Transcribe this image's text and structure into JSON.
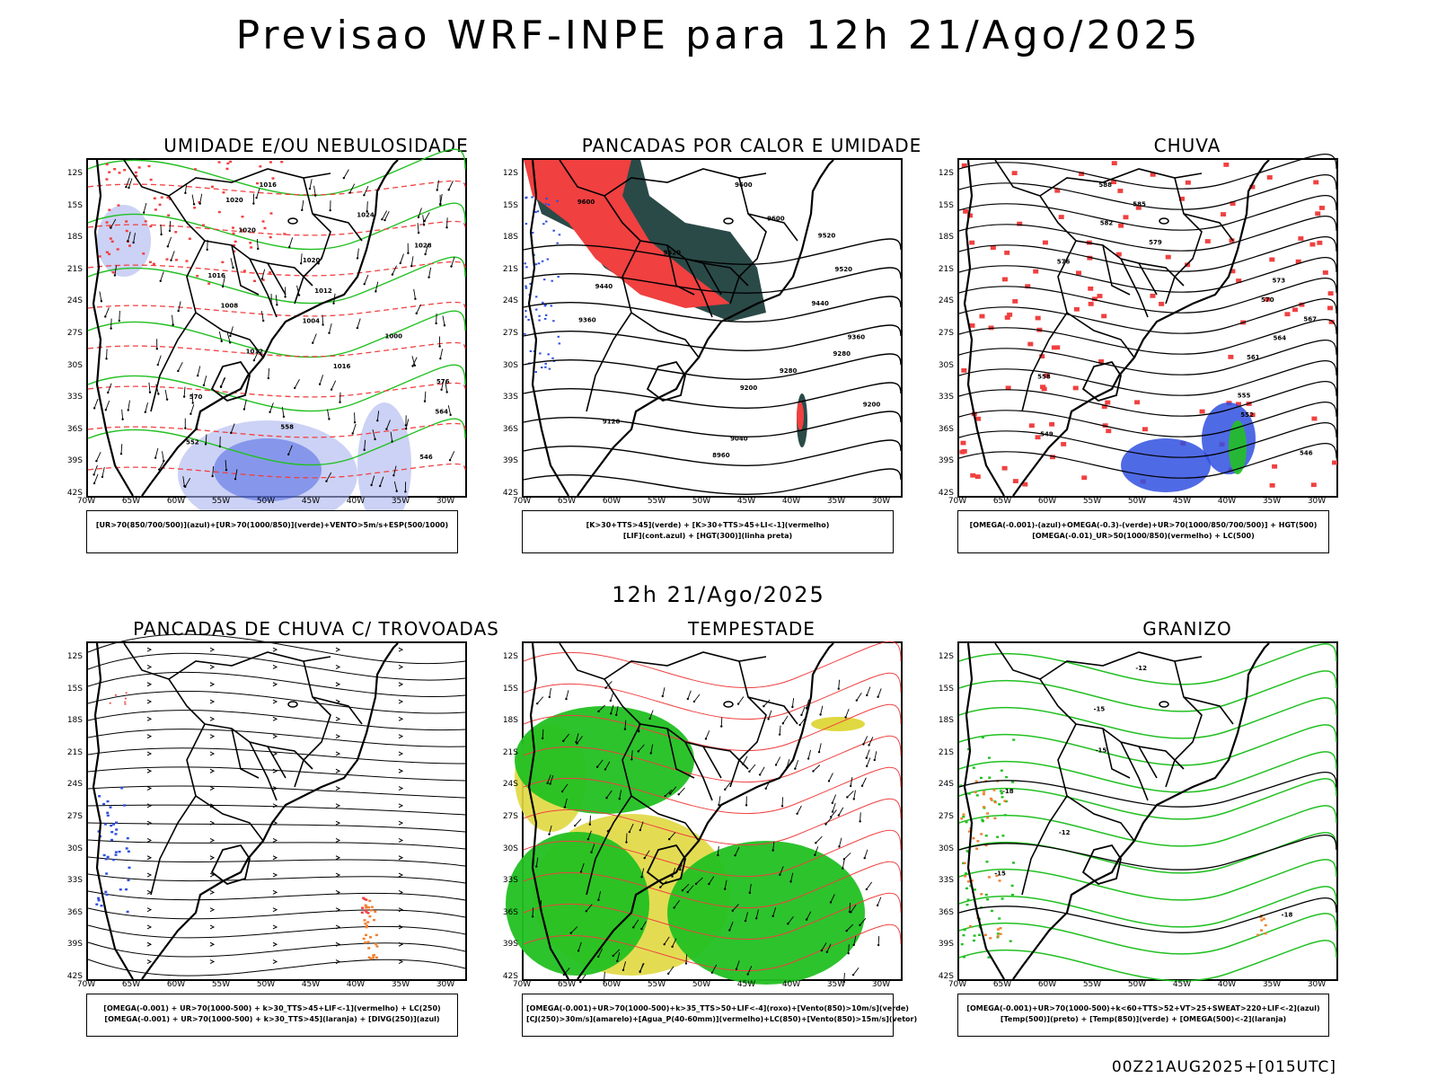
{
  "page": {
    "title": "Previsao WRF-INPE  para 12h 21/Ago/2025",
    "mid_title": "12h 21/Ago/2025",
    "footer": "00Z21AUG2025+[015UTC]"
  },
  "axes": {
    "lat_labels": [
      "12S",
      "15S",
      "18S",
      "21S",
      "24S",
      "27S",
      "30S",
      "33S",
      "36S",
      "39S",
      "42S"
    ],
    "lon_labels": [
      "70W",
      "65W",
      "60W",
      "55W",
      "50W",
      "45W",
      "40W",
      "35W",
      "30W"
    ]
  },
  "panels": [
    {
      "id": "umidade",
      "title": "UMIDADE E/OU NEBULOSIDADE",
      "caption_lines": [
        "[UR>70(850/700/500)](azul)+[UR>70(1000/850)](verde)+VENTO>5m/s+ESP(500/1000)"
      ],
      "contour_labels": [
        "1016",
        "1020",
        "1024",
        "1020",
        "1028",
        "1020",
        "1016",
        "1012",
        "1008",
        "1004",
        "1000",
        "1012",
        "1016",
        "576",
        "570",
        "564",
        "558",
        "552",
        "546"
      ]
    },
    {
      "id": "pancadas-calor",
      "title": "PANCADAS POR CALOR E UMIDADE",
      "caption_lines": [
        "[K>30+TTS>45](verde)  +  [K>30+TTS>45+LI<-1](vermelho)",
        "[LIF](cont.azul)  +  [HGT(300)](linha preta)"
      ],
      "contour_labels": [
        "9600",
        "9600",
        "9600",
        "9520",
        "9520",
        "9520",
        "9440",
        "9440",
        "9360",
        "9360",
        "9280",
        "9280",
        "9200",
        "9200",
        "9120",
        "9040",
        "8960"
      ]
    },
    {
      "id": "chuva",
      "title": "CHUVA",
      "caption_lines": [
        "[OMEGA(-0.001)-(azul)+OMEGA(-0.3)-(verde)+UR>70(1000/850/700/500)]  +  HGT(500)",
        "[OMEGA(-0.01)_UR>50(1000/850)(vermelho)  +  LC(500)"
      ],
      "contour_labels": [
        "588",
        "585",
        "582",
        "579",
        "576",
        "573",
        "570",
        "567",
        "564",
        "561",
        "558",
        "555",
        "552",
        "549",
        "546"
      ]
    },
    {
      "id": "trovoadas",
      "title": "PANCADAS DE CHUVA C/ TROVOADAS",
      "caption_lines": [
        "[OMEGA(-0.001)  +  UR>70(1000-500)  +  k>30_TTS>45+LIF<-1](vermelho)  +  LC(250)",
        "[OMEGA(-0.001)  +  UR>70(1000-500)  +  k>30_TTS>45](laranja)  +  [DIVG(250)](azul)"
      ],
      "contour_labels": []
    },
    {
      "id": "tempestade",
      "title": "TEMPESTADE",
      "caption_lines": [
        "[OMEGA(-0.001)+UR>70(1000-500)+k>35_TTS>50+LIF<-4](roxo)+[Vento(850)>10m/s](verde)",
        "[CJ(250)>30m/s](amarelo)+[Agua_P(40-60mm)](vermelho)+LC(850)+[Vento(850)>15m/s](vetor)"
      ],
      "contour_labels": []
    },
    {
      "id": "granizo",
      "title": "GRANIZO",
      "caption_lines": [
        "[OMEGA(-0.001)+UR>70(1000-500)+k<60+TTS>52+VT>25+SWEAT>220+LIF<-2](azul)",
        "[Temp(500)](preto)  +  [Temp(850)](verde)  +  [OMEGA(500)<-2](laranja)"
      ],
      "contour_labels": [
        "-12",
        "-15",
        "-15",
        "-18",
        "-12",
        "-15",
        "-18"
      ]
    }
  ],
  "colors": {
    "coast": "#000000",
    "red": "#f04040",
    "green": "#22c022",
    "blue": "#3050e0",
    "light_blue": "#aab4ee",
    "dark_teal": "#2a4a48",
    "yellow": "#e0d840",
    "orange": "#f08030"
  }
}
